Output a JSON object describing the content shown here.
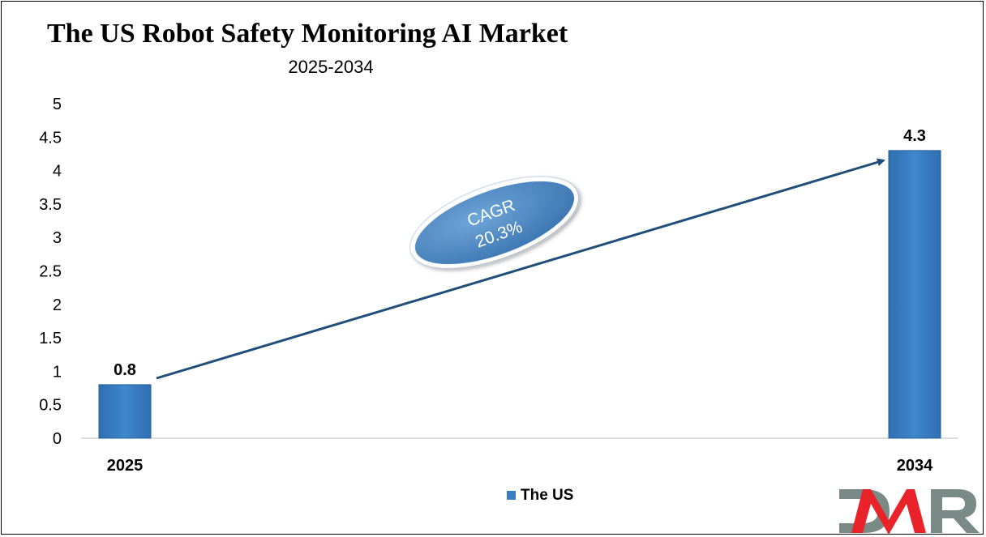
{
  "chart_data": {
    "type": "bar",
    "title": "The US Robot Safety Monitoring AI Market",
    "subtitle": "2025-2034",
    "categories": [
      "2025",
      "2034"
    ],
    "series": [
      {
        "name": "The US",
        "values": [
          0.8,
          4.3
        ],
        "color": "#3a7fc4"
      }
    ],
    "data_labels": [
      "0.8",
      "4.3"
    ],
    "ylim": [
      0,
      5
    ],
    "yticks": [
      "0",
      "0.5",
      "1",
      "1.5",
      "2",
      "2.5",
      "3",
      "3.5",
      "4",
      "4.5",
      "5"
    ],
    "grid": false,
    "legend": "bottom",
    "annotation": {
      "line1": "CAGR",
      "line2": "20.3%"
    },
    "arrow_color": "#1f4e79"
  },
  "logo": {
    "text": "DMR",
    "colors": [
      "#7a8a87",
      "#e8232a",
      "#7a8a87"
    ]
  }
}
